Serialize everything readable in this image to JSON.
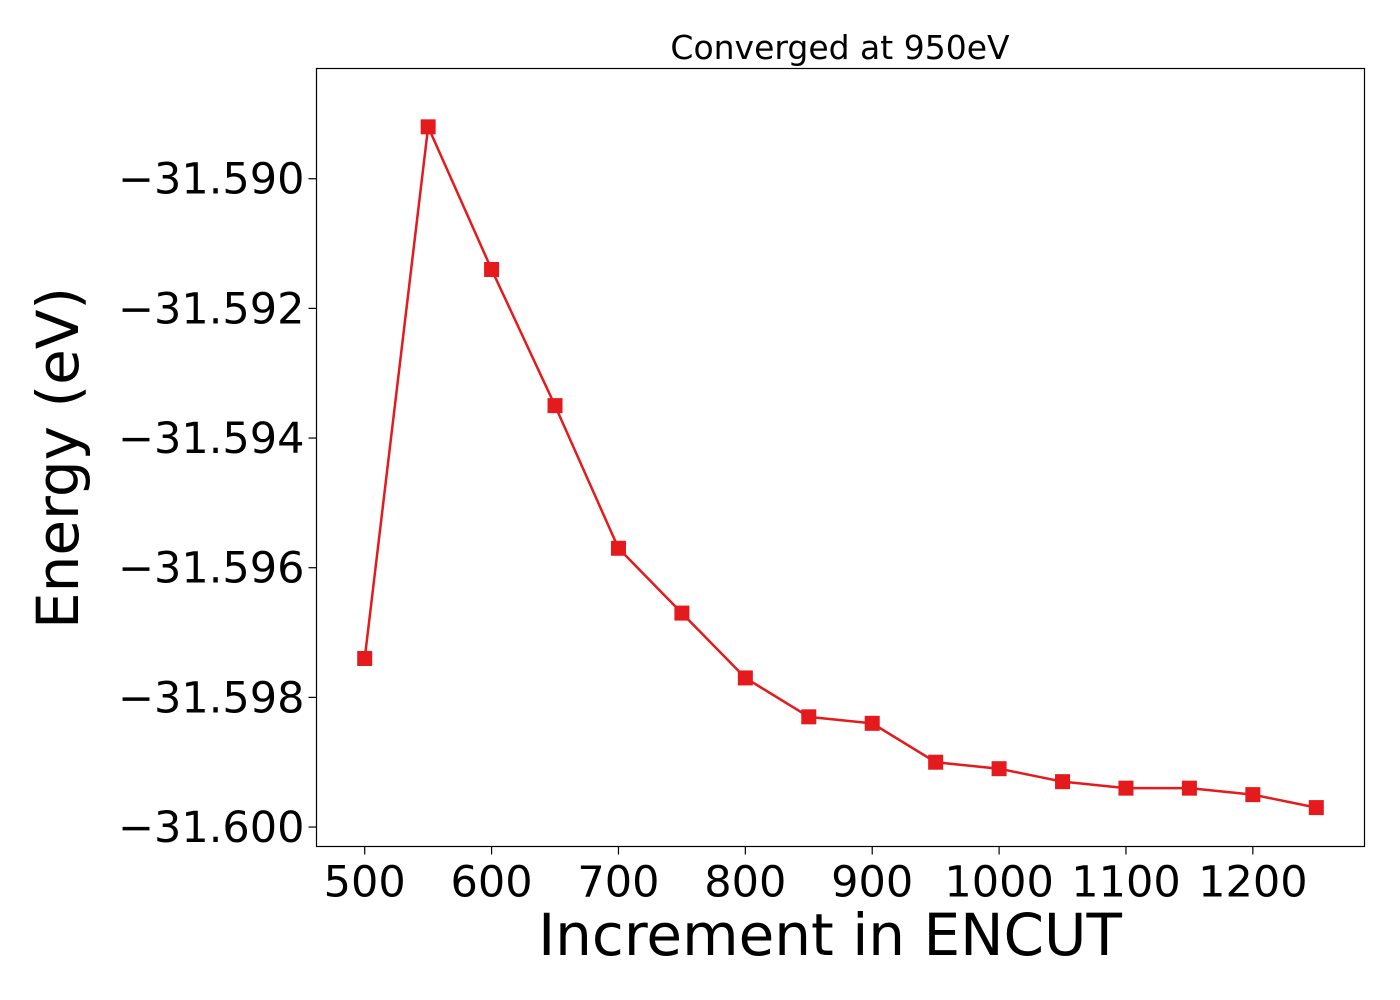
{
  "chart_data": {
    "type": "line",
    "title": "Converged at 950eV",
    "xlabel": "Increment in ENCUT",
    "ylabel": "Energy (eV)",
    "xlim": [
      462,
      1288
    ],
    "ylim": [
      -31.6003,
      -31.5883
    ],
    "x_ticks": [
      500,
      600,
      700,
      800,
      900,
      1000,
      1100,
      1200
    ],
    "x_tick_labels": [
      "500",
      "600",
      "700",
      "800",
      "900",
      "1000",
      "1100",
      "1200"
    ],
    "y_ticks": [
      -31.59,
      -31.592,
      -31.594,
      -31.596,
      -31.598,
      -31.6
    ],
    "y_tick_labels": [
      "−31.590",
      "−31.592",
      "−31.594",
      "−31.596",
      "−31.598",
      "−31.600"
    ],
    "grid": false,
    "legend": "none",
    "series": [
      {
        "color": "#e41a1c",
        "marker": "square",
        "x": [
          500,
          550,
          600,
          650,
          700,
          750,
          800,
          850,
          900,
          950,
          1000,
          1050,
          1100,
          1150,
          1200,
          1250
        ],
        "y": [
          -31.5974,
          -31.5892,
          -31.5914,
          -31.5935,
          -31.5957,
          -31.5967,
          -31.5977,
          -31.5983,
          -31.5984,
          -31.599,
          -31.5991,
          -31.5993,
          -31.5994,
          -31.5994,
          -31.5995,
          -31.5997
        ]
      }
    ]
  }
}
